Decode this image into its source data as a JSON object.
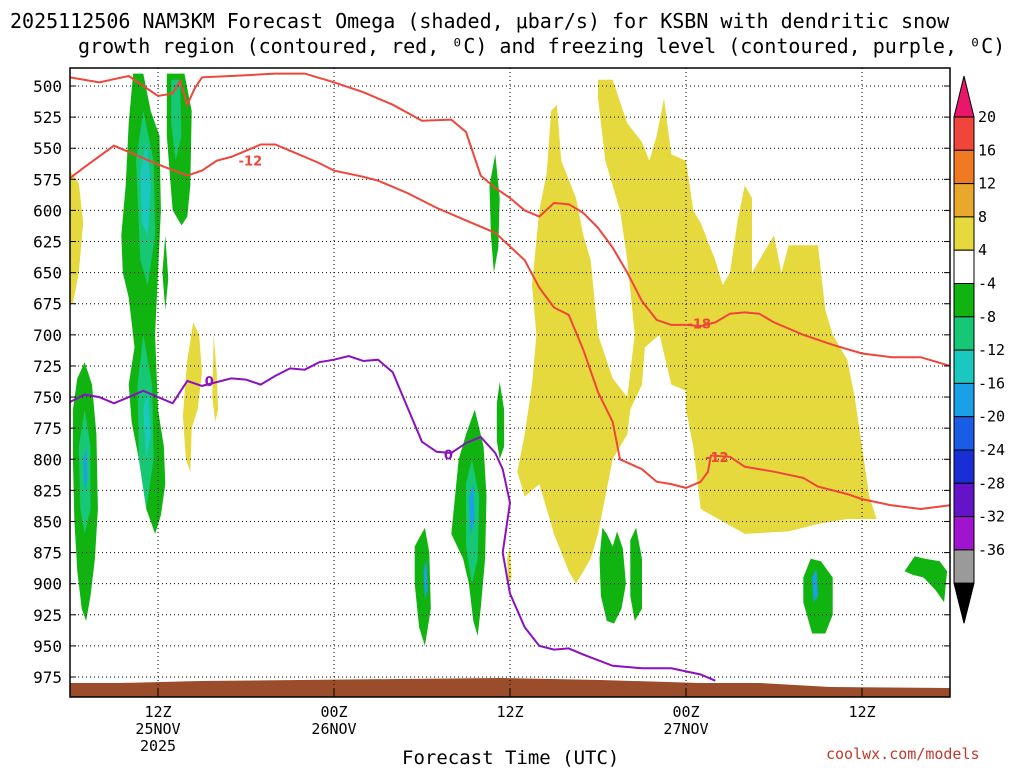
{
  "chart_data": {
    "type": "time-height cross section",
    "title_line1": "2025112506 NAM3KM Forecast Omega (shaded, μbar/s) for KSBN with dendritic snow",
    "title_line2": "growth region (contoured, red, ⁰C) and freezing level (contoured, purple, ⁰C)",
    "xlabel": "Forecast Time (UTC)",
    "credit": "coolwx.com/models",
    "y_unit": "hPa",
    "y_ticks": [
      "500",
      "525",
      "550",
      "575",
      "600",
      "625",
      "650",
      "675",
      "700",
      "725",
      "750",
      "775",
      "800",
      "825",
      "850",
      "875",
      "900",
      "925",
      "950",
      "975"
    ],
    "y_range": [
      495,
      990
    ],
    "x_range_hours": [
      6,
      66
    ],
    "x_ticks": [
      {
        "hour": 12,
        "line1": "12Z",
        "line2": "25NOV",
        "line3": "2025"
      },
      {
        "hour": 24,
        "line1": "00Z",
        "line2": "26NOV",
        "line3": ""
      },
      {
        "hour": 36,
        "line1": "12Z",
        "line2": "",
        "line3": ""
      },
      {
        "hour": 48,
        "line1": "00Z",
        "line2": "27NOV",
        "line3": ""
      },
      {
        "hour": 60,
        "line1": "12Z",
        "line2": "",
        "line3": ""
      }
    ],
    "colorbar": {
      "labels": [
        "20",
        "16",
        "12",
        "8",
        "4",
        "-4",
        "-8",
        "-12",
        "-16",
        "-20",
        "-24",
        "-28",
        "-32",
        "-36"
      ],
      "colors": [
        "#e8176b",
        "#f0453a",
        "#f07a24",
        "#e8a82c",
        "#e6d93e",
        "#ffffff",
        "#11b311",
        "#16c875",
        "#1bc8c0",
        "#1aa0e6",
        "#1a5ce6",
        "#1a2ed6",
        "#6414c8",
        "#a014d0",
        "#9a9a9a",
        "#000000"
      ]
    },
    "contours": [
      {
        "name": "-12C isotherm upper",
        "color": "#f0453a",
        "label": "-12",
        "points": [
          [
            6,
            574
          ],
          [
            7,
            565
          ],
          [
            9,
            548
          ],
          [
            10,
            553
          ],
          [
            12,
            563
          ],
          [
            14,
            572
          ],
          [
            15,
            568
          ],
          [
            16,
            560
          ],
          [
            17,
            557
          ],
          [
            18,
            552
          ],
          [
            19,
            547
          ],
          [
            20,
            547
          ],
          [
            21,
            552
          ],
          [
            23,
            562
          ],
          [
            24,
            568
          ],
          [
            26,
            573
          ],
          [
            27,
            576
          ],
          [
            29,
            586
          ],
          [
            31,
            598
          ],
          [
            33,
            608
          ],
          [
            35,
            618
          ],
          [
            37,
            640
          ],
          [
            38,
            662
          ],
          [
            39,
            678
          ],
          [
            40,
            684
          ],
          [
            41,
            712
          ],
          [
            42,
            746
          ],
          [
            43,
            770
          ],
          [
            43.5,
            800
          ],
          [
            45,
            808
          ],
          [
            46,
            818
          ],
          [
            47,
            820
          ],
          [
            48,
            823
          ],
          [
            49,
            818
          ],
          [
            49.5,
            810
          ],
          [
            49.7,
            797
          ],
          [
            51,
            798
          ],
          [
            52,
            806
          ],
          [
            54,
            810
          ],
          [
            56,
            815
          ],
          [
            57,
            822
          ],
          [
            59,
            828
          ],
          [
            60,
            832
          ],
          [
            62,
            837
          ],
          [
            64,
            840
          ],
          [
            66,
            837
          ]
        ]
      },
      {
        "name": "-18C isotherm",
        "color": "#f0453a",
        "label": "-18",
        "points": [
          [
            6,
            493
          ],
          [
            8,
            497
          ],
          [
            10,
            492
          ],
          [
            11,
            500
          ],
          [
            12,
            508
          ],
          [
            13,
            506
          ],
          [
            13.5,
            496
          ],
          [
            14,
            515
          ],
          [
            14.5,
            502
          ],
          [
            15,
            493
          ],
          [
            17,
            492
          ],
          [
            20,
            490
          ],
          [
            22,
            490
          ],
          [
            24,
            497
          ],
          [
            26,
            505
          ],
          [
            28,
            515
          ],
          [
            30,
            528
          ],
          [
            32,
            527
          ],
          [
            33,
            537
          ],
          [
            34,
            572
          ],
          [
            35,
            582
          ],
          [
            36,
            590
          ],
          [
            37,
            600
          ],
          [
            38,
            605
          ],
          [
            39,
            594
          ],
          [
            40,
            595
          ],
          [
            41,
            602
          ],
          [
            42,
            614
          ],
          [
            43,
            630
          ],
          [
            44,
            650
          ],
          [
            45,
            673
          ],
          [
            46,
            688
          ],
          [
            47,
            692
          ],
          [
            48,
            692
          ],
          [
            49,
            693
          ],
          [
            50,
            690
          ],
          [
            51,
            683
          ],
          [
            52,
            682
          ],
          [
            53,
            683
          ],
          [
            54,
            690
          ],
          [
            56,
            700
          ],
          [
            58,
            708
          ],
          [
            60,
            715
          ],
          [
            62,
            718
          ],
          [
            64,
            718
          ],
          [
            66,
            725
          ]
        ]
      },
      {
        "name": "0C freezing level",
        "color": "#8b10c0",
        "label": "0",
        "points": [
          [
            6,
            754
          ],
          [
            7,
            748
          ],
          [
            8,
            750
          ],
          [
            9,
            755
          ],
          [
            10,
            750
          ],
          [
            11,
            745
          ],
          [
            12,
            750
          ],
          [
            13,
            755
          ],
          [
            14,
            737
          ],
          [
            15,
            741
          ],
          [
            16,
            738
          ],
          [
            17,
            735
          ],
          [
            18,
            736
          ],
          [
            19,
            740
          ],
          [
            20,
            733
          ],
          [
            21,
            727
          ],
          [
            22,
            728
          ],
          [
            23,
            722
          ],
          [
            24,
            720
          ],
          [
            25,
            717
          ],
          [
            26,
            721
          ],
          [
            27,
            720
          ],
          [
            28,
            730
          ],
          [
            29,
            758
          ],
          [
            30,
            786
          ],
          [
            31,
            794
          ],
          [
            32,
            795
          ],
          [
            33,
            787
          ],
          [
            34,
            782
          ],
          [
            35,
            795
          ],
          [
            35.5,
            808
          ],
          [
            36,
            835
          ],
          [
            35.5,
            875
          ],
          [
            36,
            908
          ],
          [
            37,
            935
          ],
          [
            38,
            950
          ],
          [
            39,
            953
          ],
          [
            40,
            952
          ],
          [
            41,
            957
          ],
          [
            43,
            966
          ],
          [
            45,
            968
          ],
          [
            47,
            968
          ],
          [
            49,
            973
          ],
          [
            50,
            978
          ]
        ]
      }
    ],
    "omega_regions": [
      {
        "level": "4 to 8",
        "color": "#e6d93e",
        "desc": "weak rising motion, upper left edge",
        "hours": [
          6,
          6.8
        ],
        "hPa": [
          570,
          672
        ]
      },
      {
        "level": "4 to 8",
        "color": "#e6d93e",
        "desc": "weak rising motion",
        "hours": [
          13.5,
          14.8
        ],
        "hPa": [
          680,
          760
        ]
      },
      {
        "level": "4 to 8",
        "color": "#e6d93e",
        "desc": "large rising motion area",
        "hours": [
          37,
          64
        ],
        "hPa": [
          495,
          900
        ]
      },
      {
        "level": "-4 to -16",
        "color": "#11b311",
        "desc": "sinking motion column",
        "hours": [
          9.5,
          13.5
        ],
        "hPa": [
          490,
          860
        ]
      },
      {
        "level": "-4 to -16",
        "color": "#11b311",
        "desc": "sinking motion column",
        "hours": [
          6.2,
          7.8
        ],
        "hPa": [
          720,
          940
        ]
      },
      {
        "level": "-4 to -16",
        "color": "#11b311",
        "desc": "sinking motion column",
        "hours": [
          32,
          35
        ],
        "hPa": [
          740,
          950
        ]
      },
      {
        "level": "-4 to -16",
        "color": "#11b311",
        "desc": "sinking motion",
        "hours": [
          42,
          46
        ],
        "hPa": [
          845,
          935
        ]
      },
      {
        "level": "-4 to -16",
        "color": "#11b311",
        "desc": "sinking motion",
        "hours": [
          56,
          58
        ],
        "hPa": [
          880,
          940
        ]
      },
      {
        "level": "-4 to -16",
        "color": "#11b311",
        "desc": "sinking motion",
        "hours": [
          63,
          66
        ],
        "hPa": [
          878,
          917
        ]
      }
    ]
  }
}
